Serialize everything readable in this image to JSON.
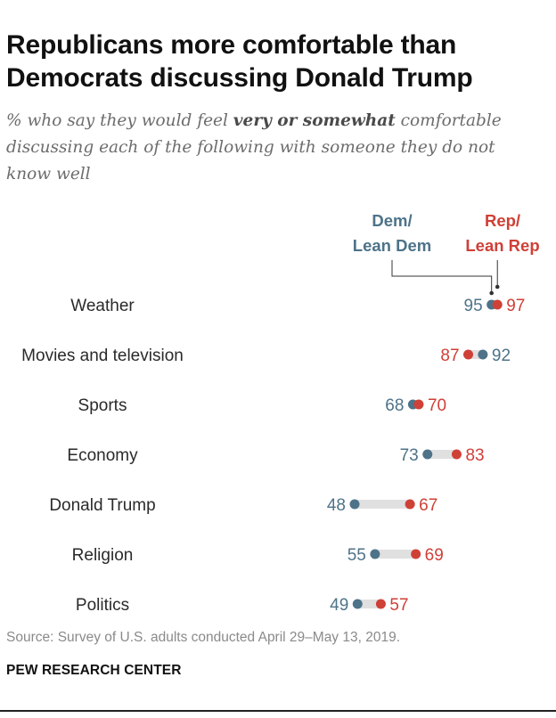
{
  "title": "Republicans more comfortable than Democrats discussing Donald Trump",
  "subtitle": {
    "before": "% who say they would feel ",
    "emphasis": "very or somewhat",
    "after": " comfortable discussing each of the following with someone they do not know well"
  },
  "source": "Source: Survey of U.S. adults conducted April 29–May 13, 2019.",
  "brand": "PEW RESEARCH CENTER",
  "colors": {
    "dem": "#4e7389",
    "rep": "#cf4037",
    "bar": "#e0e0e0",
    "label": "#2a2a2a",
    "leader": "#333333"
  },
  "chart_data": {
    "type": "dot",
    "series": [
      {
        "name": "Dem/Lean Dem",
        "label_lines": [
          "Dem/",
          "Lean Dem"
        ],
        "values": [
          95,
          92,
          68,
          73,
          48,
          55,
          49
        ]
      },
      {
        "name": "Rep/Lean Rep",
        "label_lines": [
          "Rep/",
          "Lean Rep"
        ],
        "values": [
          97,
          87,
          70,
          83,
          67,
          69,
          57
        ]
      }
    ],
    "categories": [
      "Weather",
      "Movies and television",
      "Sports",
      "Economy",
      "Donald Trump",
      "Religion",
      "Politics"
    ],
    "xlim": [
      0,
      100
    ]
  }
}
